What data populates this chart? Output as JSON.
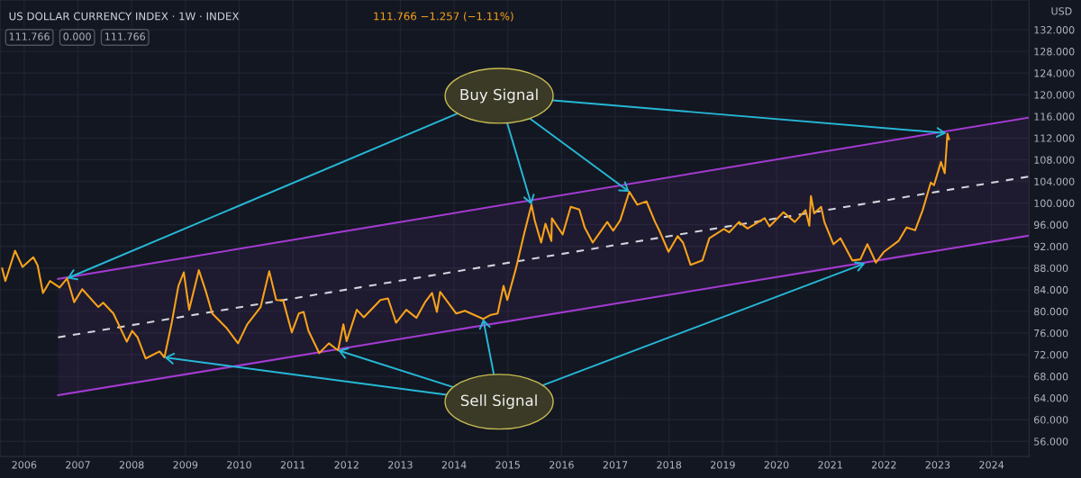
{
  "chart_data": {
    "type": "line",
    "title": "US DOLLAR CURRENCY INDEX · 1W · INDEX",
    "subtitle": "111.766 −1.257 (−1.11%)",
    "ylabel": "USD",
    "annotations": [
      "111.766",
      "0.000",
      "111.766",
      {
        "text": "Buy Signal",
        "x": 2023.16,
        "y": 112.9
      },
      {
        "text": "Sell Signal",
        "x": 2021.65,
        "y": 88.9
      }
    ],
    "series": [
      {
        "color": "#f7a21b",
        "x": [
          2005.59,
          2005.65,
          2005.83,
          2005.97,
          2006.17,
          2006.25,
          2006.35,
          2006.48,
          2006.66,
          2006.8,
          2006.93,
          2007.08,
          2007.38,
          2007.47,
          2007.66,
          2007.91,
          2008.01,
          2008.11,
          2008.26,
          2008.52,
          2008.61,
          2008.74,
          2008.87,
          2008.97,
          2009.07,
          2009.25,
          2009.38,
          2009.5,
          2009.76,
          2009.98,
          2010.15,
          2010.4,
          2010.56,
          2010.69,
          2010.82,
          2010.98,
          2011.11,
          2011.2,
          2011.29,
          2011.49,
          2011.67,
          2011.84,
          2011.94,
          2012.0,
          2012.19,
          2012.32,
          2012.63,
          2012.77,
          2012.92,
          2013.11,
          2013.3,
          2013.46,
          2013.59,
          2013.68,
          2013.74,
          2014.04,
          2014.2,
          2014.54,
          2014.67,
          2014.81,
          2014.92,
          2014.99,
          2015.15,
          2015.3,
          2015.44,
          2015.5,
          2015.62,
          2015.7,
          2015.81,
          2015.82,
          2016.02,
          2016.17,
          2016.33,
          2016.43,
          2016.58,
          2016.85,
          2016.96,
          2017.09,
          2017.26,
          2017.41,
          2017.58,
          2017.74,
          2017.82,
          2017.99,
          2018.16,
          2018.26,
          2018.4,
          2018.62,
          2018.75,
          2019.02,
          2019.12,
          2019.3,
          2019.46,
          2019.78,
          2019.87,
          2020.13,
          2020.34,
          2020.54,
          2020.61,
          2020.64,
          2020.7,
          2020.83,
          2020.89,
          2021.06,
          2021.19,
          2021.41,
          2021.56,
          2021.69,
          2021.85,
          2022.0,
          2022.27,
          2022.42,
          2022.58,
          2022.72,
          2022.87,
          2022.93,
          2023.06,
          2023.13,
          2023.18,
          2023.21
        ],
        "values": [
          87.9,
          85.6,
          91.2,
          88.2,
          90.0,
          88.5,
          83.4,
          85.6,
          84.4,
          86.1,
          81.7,
          84.1,
          80.8,
          81.6,
          79.6,
          74.4,
          76.4,
          75.2,
          71.3,
          72.6,
          71.5,
          77.6,
          84.7,
          87.2,
          80.3,
          87.6,
          83.7,
          79.6,
          77.0,
          74.1,
          77.6,
          80.8,
          87.4,
          82.1,
          82.0,
          76.1,
          79.6,
          79.9,
          76.4,
          72.3,
          74.1,
          72.8,
          77.6,
          74.5,
          80.3,
          78.9,
          82.1,
          82.4,
          77.9,
          80.3,
          78.8,
          81.7,
          83.4,
          79.9,
          83.6,
          79.6,
          80.1,
          78.6,
          79.3,
          79.6,
          84.7,
          82.1,
          87.9,
          94.2,
          99.7,
          96.8,
          92.7,
          96.2,
          93.0,
          97.2,
          94.2,
          99.3,
          98.8,
          95.5,
          92.7,
          96.5,
          94.9,
          96.8,
          102.1,
          99.7,
          100.3,
          96.5,
          94.9,
          91.0,
          93.9,
          92.7,
          88.6,
          89.4,
          93.5,
          95.2,
          94.6,
          96.5,
          95.3,
          97.2,
          95.7,
          98.3,
          96.5,
          98.7,
          95.8,
          101.3,
          98.1,
          99.3,
          96.5,
          92.4,
          93.5,
          89.4,
          89.6,
          92.4,
          89.0,
          91.0,
          93.0,
          95.5,
          95.0,
          98.7,
          103.8,
          103.3,
          107.6,
          105.5,
          112.8,
          111.8
        ]
      },
      {
        "type": "line",
        "color": "#a33bd1",
        "x": [
          2006.63,
          2024.7
        ],
        "values": [
          86.0,
          115.8
        ]
      },
      {
        "type": "line",
        "color": "#a33bd1",
        "x": [
          2006.63,
          2024.7
        ],
        "values": [
          64.5,
          94.0
        ]
      },
      {
        "type": "line",
        "color": "#d1d4dc",
        "line_style": "dashed",
        "x": [
          2006.63,
          2024.7
        ],
        "values": [
          75.2,
          104.9
        ],
        "lower": [
          64.5,
          94.0
        ],
        "upper": [
          86.0,
          115.8
        ]
      }
    ],
    "xlim": [
      2005.55,
      2024.7
    ],
    "xticks": [
      2006,
      2007,
      2008,
      2009,
      2010,
      2011,
      2012,
      2013,
      2014,
      2015,
      2016,
      2017,
      2018,
      2019,
      2020,
      2021,
      2022,
      2023,
      2024
    ],
    "ylim": [
      53.2,
      137.5
    ],
    "yticks": [
      {
        "value": 56,
        "label": "56.000"
      },
      {
        "value": 60,
        "label": "60.000"
      },
      {
        "value": 64,
        "label": "64.000"
      },
      {
        "value": 68,
        "label": "68.000"
      },
      {
        "value": 72,
        "label": "72.000"
      },
      {
        "value": 76,
        "label": "76.000"
      },
      {
        "value": 80,
        "label": "80.000"
      },
      {
        "value": 84,
        "label": "84.000"
      },
      {
        "value": 88,
        "label": "88.000"
      },
      {
        "value": 92,
        "label": "92.000"
      },
      {
        "value": 96,
        "label": "96.000"
      },
      {
        "value": 100,
        "label": "100.000"
      },
      {
        "value": 104,
        "label": "104.000"
      },
      {
        "value": 108,
        "label": "108.000"
      },
      {
        "value": 112,
        "label": "112.000"
      },
      {
        "value": 116,
        "label": "116.000"
      },
      {
        "value": 120,
        "label": "120.000"
      },
      {
        "value": 124,
        "label": "124.000"
      },
      {
        "value": 128,
        "label": "128.000"
      },
      {
        "value": 132,
        "label": "132.000"
      }
    ],
    "grid": true,
    "line_style": "solid",
    "marker": "none"
  }
}
